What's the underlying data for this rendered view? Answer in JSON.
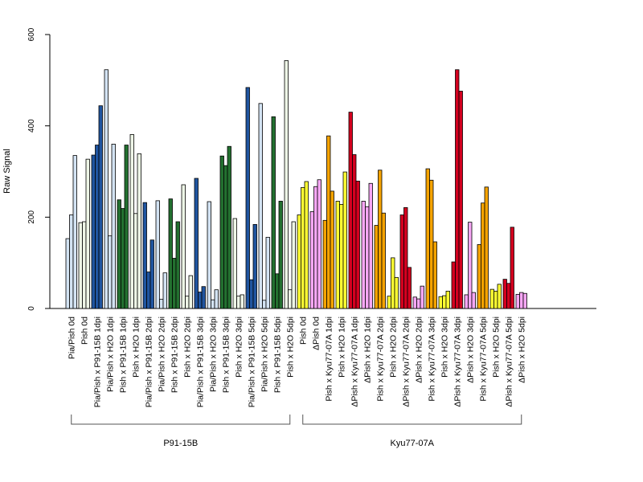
{
  "chart_data": {
    "type": "bar",
    "title": "",
    "ylabel": "Raw Signal",
    "xlabel": "",
    "ylim": [
      0,
      600
    ],
    "yticks": [
      "0",
      "200",
      "400",
      "600"
    ],
    "grid": false,
    "legend": "none",
    "categories": [
      {
        "label": "Pia/Pish 0d",
        "color": "#d3e3f3",
        "values": [
          153,
          205,
          335
        ]
      },
      {
        "label": "Pish 0d",
        "color": "#eef6e7",
        "values": [
          188,
          190,
          327
        ]
      },
      {
        "label": "Pia/Pish x P91-15B 1dpi",
        "color": "#2055a0",
        "values": [
          336,
          358,
          444
        ]
      },
      {
        "label": "Pia/Pish x H2O 1dpi",
        "color": "#d3e3f3",
        "values": [
          523,
          159,
          360
        ]
      },
      {
        "label": "Pish x P91-15B 1dpi",
        "color": "#237030",
        "values": [
          238,
          219,
          358
        ]
      },
      {
        "label": "Pish x H2O 1dpi",
        "color": "#eef6e7",
        "values": [
          381,
          208,
          339
        ]
      },
      {
        "label": "Pia/Pish x P91-15B 2dpi",
        "color": "#2055a0",
        "values": [
          232,
          80,
          150
        ]
      },
      {
        "label": "Pia/Pish x H2O 2dpi",
        "color": "#d3e3f3",
        "values": [
          236,
          20,
          78
        ]
      },
      {
        "label": "Pish x P91-15B 2dpi",
        "color": "#237030",
        "values": [
          240,
          110,
          190
        ]
      },
      {
        "label": "Pish x H2O 2dpi",
        "color": "#eef6e7",
        "values": [
          271,
          27,
          72
        ]
      },
      {
        "label": "Pia/Pish x P91-15B 3dpi",
        "color": "#2055a0",
        "values": [
          285,
          36,
          48
        ]
      },
      {
        "label": "Pia/Pish x H2O 3dpi",
        "color": "#d3e3f3",
        "values": [
          234,
          19,
          41
        ]
      },
      {
        "label": "Pish x P91-15B 3dpi",
        "color": "#237030",
        "values": [
          334,
          313,
          355
        ]
      },
      {
        "label": "Pish x H2O 3dpi",
        "color": "#eef6e7",
        "values": [
          197,
          27,
          30
        ]
      },
      {
        "label": "Pia/Pish x P91-15B 5dpi",
        "color": "#2055a0",
        "values": [
          484,
          63,
          184
        ]
      },
      {
        "label": "Pia/Pish x H2O 5dpi",
        "color": "#d3e3f3",
        "values": [
          449,
          18,
          156
        ]
      },
      {
        "label": "Pish x P91-15B 5dpi",
        "color": "#237030",
        "values": [
          420,
          76,
          235
        ]
      },
      {
        "label": "Pish x H2O 5dpi",
        "color": "#eef6e7",
        "values": [
          543,
          41,
          190
        ]
      },
      {
        "label": "Pish 0d",
        "color": "#ffff33",
        "values": [
          205,
          265,
          278
        ]
      },
      {
        "label": "ΔPish 0d",
        "color": "#f7a7f5",
        "values": [
          212,
          267,
          282
        ]
      },
      {
        "label": "Pish x Kyu77-07A 1dpi",
        "color": "#f5a300",
        "values": [
          193,
          378,
          257
        ]
      },
      {
        "label": "Pish x H2O 1dpi",
        "color": "#ffff33",
        "values": [
          235,
          228,
          299
        ]
      },
      {
        "label": "ΔPish x Kyu77-07A 1dpi",
        "color": "#d4001f",
        "values": [
          430,
          337,
          279
        ]
      },
      {
        "label": "ΔPish x H2O 1dpi",
        "color": "#f7a7f5",
        "values": [
          235,
          223,
          274
        ]
      },
      {
        "label": "Pish x Kyu77-07A 2dpi",
        "color": "#f5a300",
        "values": [
          182,
          303,
          209
        ]
      },
      {
        "label": "Pish x H2O 2dpi",
        "color": "#ffff33",
        "values": [
          27,
          111,
          68
        ]
      },
      {
        "label": "ΔPish x Kyu77-07A 2dpi",
        "color": "#d4001f",
        "values": [
          205,
          221,
          90
        ]
      },
      {
        "label": "ΔPish x H2O 2dpi",
        "color": "#f7a7f5",
        "values": [
          25,
          21,
          49
        ]
      },
      {
        "label": "Pish x Kyu77-07A 3dpi",
        "color": "#f5a300",
        "values": [
          306,
          281,
          146
        ]
      },
      {
        "label": "Pish x H2O 3dpi",
        "color": "#ffff33",
        "values": [
          26,
          28,
          38
        ]
      },
      {
        "label": "ΔPish x Kyu77-07A 3dpi",
        "color": "#d4001f",
        "values": [
          102,
          523,
          476
        ]
      },
      {
        "label": "ΔPish x H2O 3dpi",
        "color": "#f7a7f5",
        "values": [
          30,
          189,
          35
        ]
      },
      {
        "label": "Pish x Kyu77-07A 5dpi",
        "color": "#f5a300",
        "values": [
          140,
          231,
          266
        ]
      },
      {
        "label": "Pish x H2O 5dpi",
        "color": "#ffff33",
        "values": [
          42,
          38,
          53
        ]
      },
      {
        "label": "ΔPish x Kyu77-07A 5dpi",
        "color": "#d4001f",
        "values": [
          64,
          55,
          178
        ]
      },
      {
        "label": "ΔPish x H2O 5dpi",
        "color": "#f7a7f5",
        "values": [
          31,
          35,
          33
        ]
      }
    ],
    "groups": [
      {
        "label": "P91-15B",
        "from": 0,
        "to": 17
      },
      {
        "label": "Kyu77-07A",
        "from": 18,
        "to": 35
      }
    ]
  }
}
